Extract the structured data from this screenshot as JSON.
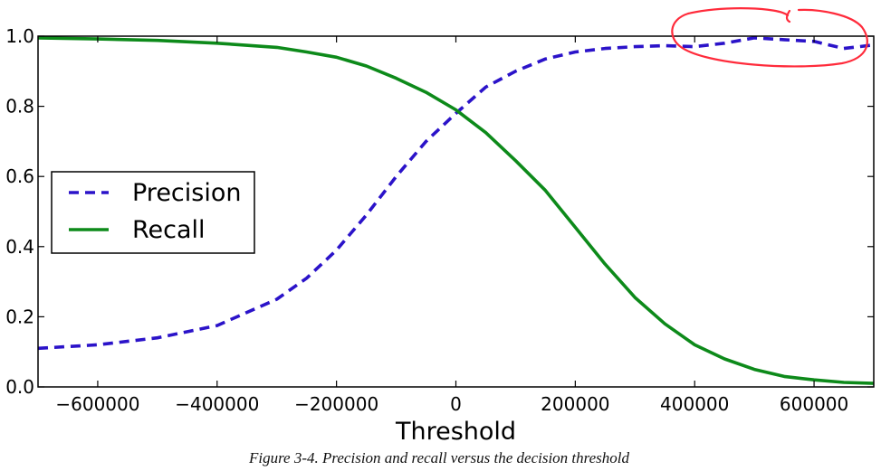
{
  "chart_data": {
    "type": "line",
    "title": "",
    "xlabel": "Threshold",
    "ylabel": "",
    "xlim": [
      -700000,
      700000
    ],
    "ylim": [
      0.0,
      1.0
    ],
    "xticks": [
      -600000,
      -400000,
      -200000,
      0,
      200000,
      400000,
      600000
    ],
    "xtick_labels": [
      "−600000",
      "−400000",
      "−200000",
      "0",
      "200000",
      "400000",
      "600000"
    ],
    "yticks": [
      0.0,
      0.2,
      0.4,
      0.6,
      0.8,
      1.0
    ],
    "ytick_labels": [
      "0.0",
      "0.2",
      "0.4",
      "0.6",
      "0.8",
      "1.0"
    ],
    "grid": false,
    "legend_position": "center-left",
    "series": [
      {
        "name": "Precision",
        "style": "dashed",
        "color": "#2b13c9",
        "x": [
          -700000,
          -600000,
          -500000,
          -400000,
          -300000,
          -250000,
          -200000,
          -150000,
          -100000,
          -50000,
          0,
          50000,
          100000,
          150000,
          200000,
          250000,
          300000,
          350000,
          400000,
          450000,
          500000,
          550000,
          600000,
          650000,
          700000
        ],
        "y": [
          0.11,
          0.12,
          0.14,
          0.175,
          0.25,
          0.31,
          0.39,
          0.49,
          0.6,
          0.7,
          0.78,
          0.855,
          0.9,
          0.935,
          0.955,
          0.965,
          0.97,
          0.973,
          0.97,
          0.98,
          0.995,
          0.99,
          0.985,
          0.965,
          0.975
        ]
      },
      {
        "name": "Recall",
        "style": "solid",
        "color": "#0d8a1a",
        "x": [
          -700000,
          -600000,
          -500000,
          -400000,
          -300000,
          -250000,
          -200000,
          -150000,
          -100000,
          -50000,
          0,
          50000,
          100000,
          150000,
          200000,
          250000,
          300000,
          350000,
          400000,
          450000,
          500000,
          550000,
          600000,
          650000,
          700000
        ],
        "y": [
          0.995,
          0.992,
          0.988,
          0.98,
          0.968,
          0.955,
          0.94,
          0.915,
          0.88,
          0.84,
          0.79,
          0.725,
          0.645,
          0.56,
          0.455,
          0.35,
          0.255,
          0.18,
          0.12,
          0.08,
          0.05,
          0.03,
          0.02,
          0.013,
          0.01
        ]
      }
    ]
  },
  "annotation": {
    "shape": "hand-drawn circle",
    "color": "#ff2b3b",
    "target": "precision curve near top-right"
  },
  "caption": "Figure 3-4. Precision and recall versus the decision threshold",
  "colors": {
    "background": "#ffffff",
    "axes": "#000000"
  }
}
